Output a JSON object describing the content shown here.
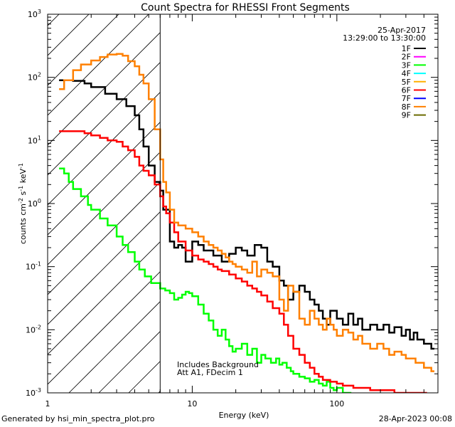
{
  "chart_data": {
    "type": "line",
    "title": "Count Spectra for RHESSI Front Segments",
    "date": "25-Apr-2017",
    "time_range": "13:29:00 to 13:30:00",
    "xlabel": "Energy (keV)",
    "ylabel_parts": [
      "counts cm",
      "-2",
      " s",
      "-1",
      " keV",
      "-1"
    ],
    "xscale": "log",
    "yscale": "log",
    "xlim": [
      1,
      500
    ],
    "ylim": [
      0.001,
      1000
    ],
    "x_tick_labels": [
      {
        "value": 1,
        "label": "1"
      },
      {
        "value": 10,
        "label": "10"
      },
      {
        "value": 100,
        "label": "100"
      }
    ],
    "y_tick_labels": [
      {
        "exp": -3,
        "label": "10",
        "sup": "-3"
      },
      {
        "exp": -2,
        "label": "10",
        "sup": "-2"
      },
      {
        "exp": -1,
        "label": "10",
        "sup": "-1"
      },
      {
        "exp": 0,
        "label": "10",
        "sup": "0"
      },
      {
        "exp": 1,
        "label": "10",
        "sup": "1"
      },
      {
        "exp": 2,
        "label": "10",
        "sup": "2"
      },
      {
        "exp": 3,
        "label": "10",
        "sup": "3"
      }
    ],
    "hatched_region_xmax": 6,
    "vertical_line_x": 6,
    "annotations": [
      "Includes Background",
      "Att A1, FDecim 1"
    ],
    "legend_location": "top-right",
    "legend": [
      {
        "name": "1F",
        "color": "#000000"
      },
      {
        "name": "2F",
        "color": "#ff00ff"
      },
      {
        "name": "3F",
        "color": "#00ff00"
      },
      {
        "name": "4F",
        "color": "#00ffff"
      },
      {
        "name": "5F",
        "color": "#ffb000"
      },
      {
        "name": "6F",
        "color": "#ff0000"
      },
      {
        "name": "7F",
        "color": "#0000ff"
      },
      {
        "name": "8F",
        "color": "#ff8000"
      },
      {
        "name": "9F",
        "color": "#6b6b00"
      }
    ],
    "series": [
      {
        "name": "1F",
        "color": "#000000",
        "points": [
          [
            1.2,
            90
          ],
          [
            1.5,
            88
          ],
          [
            1.8,
            80
          ],
          [
            2.0,
            70
          ],
          [
            2.5,
            55
          ],
          [
            3.0,
            45
          ],
          [
            3.5,
            35
          ],
          [
            4.0,
            25
          ],
          [
            4.3,
            15
          ],
          [
            4.6,
            8
          ],
          [
            5.0,
            4
          ],
          [
            5.5,
            2.2
          ],
          [
            6.0,
            1.6
          ],
          [
            6.3,
            0.8
          ],
          [
            7.0,
            0.25
          ],
          [
            7.5,
            0.2
          ],
          [
            8.0,
            0.22
          ],
          [
            8.5,
            0.2
          ],
          [
            9.0,
            0.12
          ],
          [
            10,
            0.25
          ],
          [
            11,
            0.22
          ],
          [
            12,
            0.18
          ],
          [
            14,
            0.15
          ],
          [
            16,
            0.12
          ],
          [
            18,
            0.16
          ],
          [
            20,
            0.2
          ],
          [
            22,
            0.18
          ],
          [
            24,
            0.15
          ],
          [
            27,
            0.22
          ],
          [
            30,
            0.2
          ],
          [
            33,
            0.12
          ],
          [
            36,
            0.1
          ],
          [
            40,
            0.06
          ],
          [
            43,
            0.05
          ],
          [
            46,
            0.03
          ],
          [
            50,
            0.04
          ],
          [
            55,
            0.05
          ],
          [
            60,
            0.04
          ],
          [
            65,
            0.03
          ],
          [
            70,
            0.025
          ],
          [
            75,
            0.02
          ],
          [
            80,
            0.015
          ],
          [
            85,
            0.012
          ],
          [
            90,
            0.02
          ],
          [
            100,
            0.015
          ],
          [
            110,
            0.012
          ],
          [
            120,
            0.018
          ],
          [
            130,
            0.012
          ],
          [
            140,
            0.015
          ],
          [
            150,
            0.01
          ],
          [
            170,
            0.012
          ],
          [
            190,
            0.01
          ],
          [
            210,
            0.012
          ],
          [
            230,
            0.009
          ],
          [
            250,
            0.011
          ],
          [
            280,
            0.008
          ],
          [
            300,
            0.01
          ],
          [
            320,
            0.007
          ],
          [
            340,
            0.009
          ],
          [
            360,
            0.007
          ],
          [
            400,
            0.006
          ],
          [
            450,
            0.005
          ]
        ]
      },
      {
        "name": "3F",
        "color": "#00ff00",
        "points": [
          [
            1.2,
            3.6
          ],
          [
            1.3,
            3.0
          ],
          [
            1.4,
            2.2
          ],
          [
            1.5,
            1.7
          ],
          [
            1.7,
            1.3
          ],
          [
            1.9,
            0.95
          ],
          [
            2.0,
            0.8
          ],
          [
            2.3,
            0.58
          ],
          [
            2.6,
            0.45
          ],
          [
            3.0,
            0.3
          ],
          [
            3.3,
            0.22
          ],
          [
            3.6,
            0.17
          ],
          [
            4.0,
            0.12
          ],
          [
            4.3,
            0.09
          ],
          [
            4.7,
            0.07
          ],
          [
            5.2,
            0.055
          ],
          [
            6.0,
            0.045
          ],
          [
            6.5,
            0.042
          ],
          [
            7.0,
            0.038
          ],
          [
            7.5,
            0.03
          ],
          [
            8.0,
            0.032
          ],
          [
            8.5,
            0.036
          ],
          [
            9.0,
            0.04
          ],
          [
            9.5,
            0.038
          ],
          [
            10,
            0.034
          ],
          [
            11,
            0.025
          ],
          [
            12,
            0.018
          ],
          [
            13,
            0.014
          ],
          [
            14,
            0.01
          ],
          [
            15,
            0.008
          ],
          [
            16,
            0.01
          ],
          [
            17,
            0.007
          ],
          [
            18,
            0.0055
          ],
          [
            19,
            0.0045
          ],
          [
            20,
            0.005
          ],
          [
            22,
            0.006
          ],
          [
            24,
            0.004
          ],
          [
            26,
            0.005
          ],
          [
            28,
            0.003
          ],
          [
            30,
            0.004
          ],
          [
            32,
            0.0035
          ],
          [
            35,
            0.003
          ],
          [
            38,
            0.0035
          ],
          [
            40,
            0.0028
          ],
          [
            42,
            0.003
          ],
          [
            45,
            0.0025
          ],
          [
            48,
            0.0022
          ],
          [
            50,
            0.002
          ],
          [
            55,
            0.0018
          ],
          [
            60,
            0.0017
          ],
          [
            65,
            0.0015
          ],
          [
            70,
            0.0016
          ],
          [
            75,
            0.0014
          ],
          [
            80,
            0.0013
          ],
          [
            85,
            0.0015
          ],
          [
            90,
            0.0012
          ],
          [
            95,
            0.0011
          ],
          [
            100,
            0.0012
          ],
          [
            110,
            0.001
          ],
          [
            120,
            0.001
          ]
        ]
      },
      {
        "name": "6F",
        "color": "#ff0000",
        "points": [
          [
            1.2,
            14
          ],
          [
            1.5,
            14
          ],
          [
            1.8,
            13
          ],
          [
            2.0,
            12
          ],
          [
            2.3,
            11
          ],
          [
            2.6,
            10
          ],
          [
            3.0,
            9.5
          ],
          [
            3.3,
            8
          ],
          [
            3.6,
            7
          ],
          [
            4.0,
            5.5
          ],
          [
            4.3,
            4
          ],
          [
            4.6,
            3.3
          ],
          [
            5.0,
            2.8
          ],
          [
            5.5,
            2.0
          ],
          [
            6.0,
            1.3
          ],
          [
            6.3,
            0.9
          ],
          [
            6.6,
            0.7
          ],
          [
            7.0,
            0.5
          ],
          [
            7.5,
            0.35
          ],
          [
            8.0,
            0.25
          ],
          [
            9.0,
            0.18
          ],
          [
            10,
            0.15
          ],
          [
            11,
            0.13
          ],
          [
            12,
            0.12
          ],
          [
            13,
            0.11
          ],
          [
            14,
            0.1
          ],
          [
            15,
            0.09
          ],
          [
            16,
            0.085
          ],
          [
            18,
            0.075
          ],
          [
            20,
            0.065
          ],
          [
            22,
            0.058
          ],
          [
            24,
            0.05
          ],
          [
            26,
            0.045
          ],
          [
            28,
            0.04
          ],
          [
            30,
            0.035
          ],
          [
            33,
            0.028
          ],
          [
            36,
            0.022
          ],
          [
            40,
            0.018
          ],
          [
            43,
            0.012
          ],
          [
            46,
            0.008
          ],
          [
            50,
            0.005
          ],
          [
            55,
            0.004
          ],
          [
            60,
            0.003
          ],
          [
            65,
            0.0025
          ],
          [
            70,
            0.002
          ],
          [
            75,
            0.0018
          ],
          [
            80,
            0.0016
          ],
          [
            90,
            0.0015
          ],
          [
            100,
            0.0014
          ],
          [
            110,
            0.0013
          ],
          [
            130,
            0.0012
          ],
          [
            150,
            0.0012
          ],
          [
            170,
            0.0011
          ],
          [
            200,
            0.0011
          ],
          [
            250,
            0.001
          ],
          [
            300,
            0.001
          ],
          [
            350,
            0.001
          ],
          [
            400,
            0.001
          ]
        ]
      },
      {
        "name": "8F",
        "color": "#ff8000",
        "points": [
          [
            1.2,
            65
          ],
          [
            1.3,
            90
          ],
          [
            1.5,
            130
          ],
          [
            1.7,
            160
          ],
          [
            2.0,
            185
          ],
          [
            2.3,
            210
          ],
          [
            2.6,
            230
          ],
          [
            3.0,
            235
          ],
          [
            3.3,
            220
          ],
          [
            3.6,
            180
          ],
          [
            4.0,
            150
          ],
          [
            4.3,
            110
          ],
          [
            4.6,
            80
          ],
          [
            5.0,
            45
          ],
          [
            5.5,
            15
          ],
          [
            6.0,
            5
          ],
          [
            6.3,
            2.2
          ],
          [
            6.6,
            1.5
          ],
          [
            7.0,
            0.8
          ],
          [
            7.5,
            0.5
          ],
          [
            8.0,
            0.45
          ],
          [
            9.0,
            0.4
          ],
          [
            10,
            0.35
          ],
          [
            11,
            0.3
          ],
          [
            12,
            0.25
          ],
          [
            13,
            0.22
          ],
          [
            14,
            0.2
          ],
          [
            15,
            0.18
          ],
          [
            16,
            0.16
          ],
          [
            17,
            0.14
          ],
          [
            18,
            0.12
          ],
          [
            19,
            0.11
          ],
          [
            20,
            0.1
          ],
          [
            22,
            0.09
          ],
          [
            24,
            0.08
          ],
          [
            26,
            0.12
          ],
          [
            28,
            0.07
          ],
          [
            30,
            0.09
          ],
          [
            33,
            0.08
          ],
          [
            36,
            0.07
          ],
          [
            40,
            0.03
          ],
          [
            43,
            0.02
          ],
          [
            46,
            0.05
          ],
          [
            50,
            0.04
          ],
          [
            55,
            0.015
          ],
          [
            60,
            0.012
          ],
          [
            65,
            0.02
          ],
          [
            70,
            0.015
          ],
          [
            75,
            0.012
          ],
          [
            80,
            0.01
          ],
          [
            85,
            0.015
          ],
          [
            90,
            0.012
          ],
          [
            95,
            0.01
          ],
          [
            100,
            0.008
          ],
          [
            110,
            0.01
          ],
          [
            120,
            0.009
          ],
          [
            130,
            0.007
          ],
          [
            140,
            0.008
          ],
          [
            150,
            0.006
          ],
          [
            170,
            0.005
          ],
          [
            190,
            0.006
          ],
          [
            210,
            0.005
          ],
          [
            230,
            0.004
          ],
          [
            250,
            0.0045
          ],
          [
            280,
            0.004
          ],
          [
            300,
            0.0035
          ],
          [
            350,
            0.003
          ],
          [
            400,
            0.0025
          ],
          [
            450,
            0.0022
          ]
        ]
      }
    ]
  },
  "footer_left": "Generated by hsi_min_spectra_plot.pro",
  "footer_right": "28-Apr-2023 00:08"
}
